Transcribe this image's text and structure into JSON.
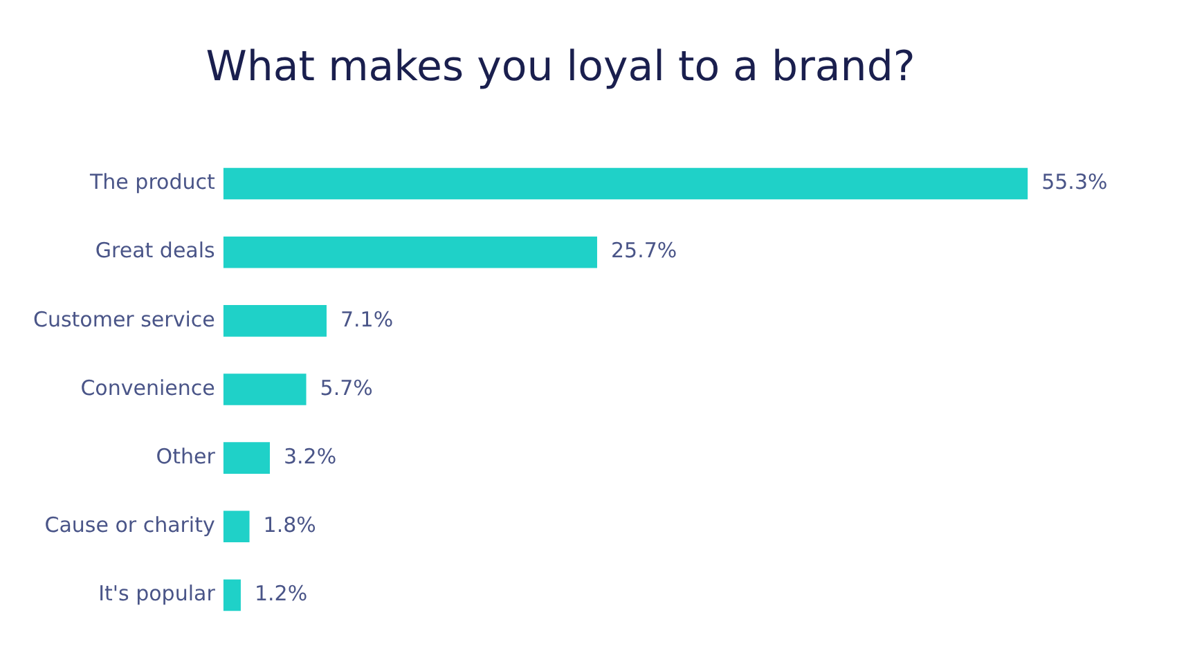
{
  "chart_data": {
    "type": "bar",
    "orientation": "horizontal",
    "title": "What makes you loyal to a brand?",
    "categories": [
      "The product",
      "Great deals",
      "Customer service",
      "Convenience",
      "Other",
      "Cause or charity",
      "It's popular"
    ],
    "values": [
      55.3,
      25.7,
      7.1,
      5.7,
      3.2,
      1.8,
      1.2
    ],
    "value_labels": [
      "55.3%",
      "25.7%",
      "7.1%",
      "5.7%",
      "3.2%",
      "1.8%",
      "1.2%"
    ],
    "color": "#1fd1c8",
    "grid": false,
    "legend": false,
    "tick_labels": "y"
  }
}
